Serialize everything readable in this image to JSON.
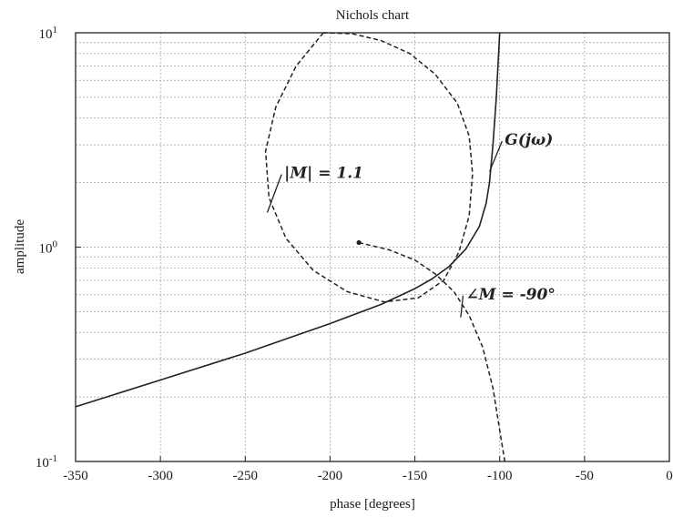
{
  "chart_data": {
    "type": "line",
    "title": "Nichols chart",
    "xlabel": "phase [degrees]",
    "ylabel": "amplitude",
    "xlim": [
      -350,
      0
    ],
    "ylim": [
      0.1,
      10
    ],
    "yscale": "log",
    "grid": true,
    "x_ticks": [
      "-350",
      "-300",
      "-250",
      "-200",
      "-150",
      "-100",
      "-50",
      "0"
    ],
    "x_tick_values": [
      -350,
      -300,
      -250,
      -200,
      -150,
      -100,
      -50,
      0
    ],
    "y_ticks": [
      {
        "base": "10",
        "exp": "-1",
        "value": 0.1
      },
      {
        "base": "10",
        "exp": "0",
        "value": 1
      },
      {
        "base": "10",
        "exp": "1",
        "value": 10
      }
    ],
    "series": [
      {
        "style": "solid",
        "x": [
          -350,
          -300,
          -250,
          -200,
          -170,
          -150,
          -140,
          -130,
          -120,
          -112,
          -108,
          -106,
          -104,
          -102,
          -100
        ],
        "y": [
          0.18,
          0.24,
          0.32,
          0.44,
          0.54,
          0.64,
          0.71,
          0.81,
          0.98,
          1.25,
          1.6,
          2.0,
          3.0,
          5.0,
          10
        ]
      },
      {
        "style": "dashed",
        "x": [
          -204,
          -220,
          -232,
          -238,
          -236,
          -226,
          -210,
          -190,
          -168,
          -148,
          -133,
          -124,
          -118,
          -116,
          -118,
          -125,
          -138,
          -153,
          -170,
          -187,
          -204
        ],
        "y": [
          10,
          7.0,
          4.5,
          2.8,
          1.7,
          1.1,
          0.78,
          0.62,
          0.555,
          0.58,
          0.7,
          0.95,
          1.4,
          2.2,
          3.3,
          4.7,
          6.4,
          8.0,
          9.2,
          9.9,
          10
        ]
      },
      {
        "style": "dashed",
        "x": [
          -183,
          -165,
          -150,
          -138,
          -127,
          -118,
          -110,
          -104,
          -100,
          -97
        ],
        "y": [
          1.05,
          0.97,
          0.87,
          0.75,
          0.62,
          0.48,
          0.34,
          0.22,
          0.14,
          0.1
        ]
      }
    ],
    "annotations": [
      {
        "label_parts": [
          "G(j",
          "ω",
          ")"
        ],
        "x": -97,
        "y": 3.0,
        "arrow_to": [
          -106,
          2.25
        ]
      },
      {
        "label_parts": [
          "|",
          "M",
          "| = 1.1"
        ],
        "x": -227,
        "y": 2.1,
        "arrow_to": [
          -237,
          1.45
        ]
      },
      {
        "label_parts": [
          "∠",
          "M",
          " = -90°"
        ],
        "x": -120,
        "y": 0.57,
        "arrow_to": [
          -123,
          0.47
        ]
      }
    ],
    "markers": [
      {
        "x": -183,
        "y": 1.05,
        "shape": "dot"
      }
    ]
  }
}
